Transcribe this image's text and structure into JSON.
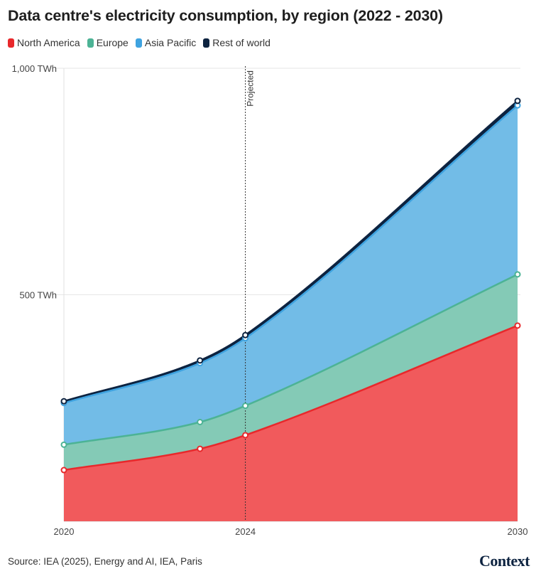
{
  "chart_data": {
    "type": "area",
    "title": "Data centre's electricity consumption, by region (2022 - 2030)",
    "x": [
      2020,
      2023,
      2024,
      2030
    ],
    "x_ticks": [
      "2020",
      "2024",
      "2030"
    ],
    "y_ticks": [
      {
        "value": 500,
        "label": "500 TWh"
      },
      {
        "value": 1000,
        "label": "1,000 TWh"
      }
    ],
    "ylim": [
      0,
      1000
    ],
    "stacked": true,
    "series": [
      {
        "name": "North America",
        "color": "#e8282b",
        "fill": "#f15a5c",
        "values": [
          113,
          160,
          190,
          432
        ]
      },
      {
        "name": "Europe",
        "color": "#4cb395",
        "fill": "#84cab6",
        "values": [
          56,
          59,
          65,
          113
        ]
      },
      {
        "name": "Asia Pacific",
        "color": "#3fa3e0",
        "fill": "#72bce7",
        "values": [
          92,
          130,
          149,
          373
        ]
      },
      {
        "name": "Rest of world",
        "color": "#0d2340",
        "fill": "#0d2340",
        "values": [
          4,
          6,
          7,
          10
        ]
      }
    ],
    "annotation": {
      "x": 2024,
      "label": "Projected"
    }
  },
  "footer": {
    "source": "Source: IEA (2025), Energy and AI, IEA, Paris",
    "brand": "Context"
  }
}
